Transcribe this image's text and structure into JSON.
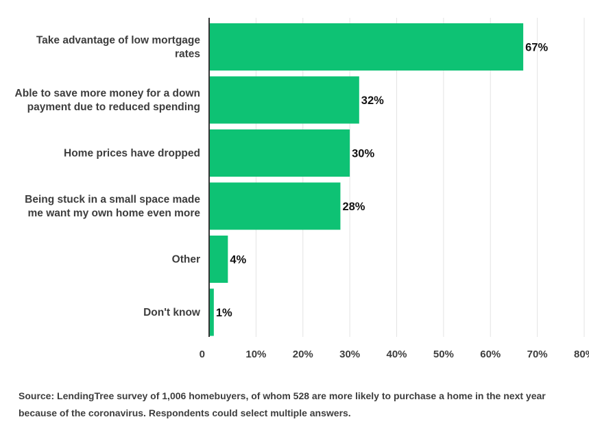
{
  "chart_data": {
    "type": "bar",
    "orientation": "horizontal",
    "categories": [
      [
        "Take advantage of low mortgage",
        "rates"
      ],
      [
        "Able to save more money for a down",
        "payment due to reduced spending"
      ],
      [
        "Home prices have dropped"
      ],
      [
        "Being stuck in a small space made",
        "me want my own home even more"
      ],
      [
        "Other"
      ],
      [
        "Don't know"
      ]
    ],
    "values": [
      67,
      32,
      30,
      28,
      4,
      1
    ],
    "value_labels": [
      "67%",
      "32%",
      "30%",
      "28%",
      "4%",
      "1%"
    ],
    "xlim": [
      0,
      80
    ],
    "xticks": [
      0,
      10,
      20,
      30,
      40,
      50,
      60,
      70,
      80
    ],
    "xtick_labels": [
      "0",
      "10%",
      "20%",
      "30%",
      "40%",
      "50%",
      "60%",
      "70%",
      "80%"
    ],
    "grid": true,
    "bar_color": "#0ec274",
    "gridline_color": "#e3e3e3",
    "axis_color": "#333333"
  },
  "source_text": "Source: LendingTree survey of 1,006 homebuyers, of whom 528 are more likely to purchase a home in the next year because of the coronavirus. Respondents could select multiple answers."
}
